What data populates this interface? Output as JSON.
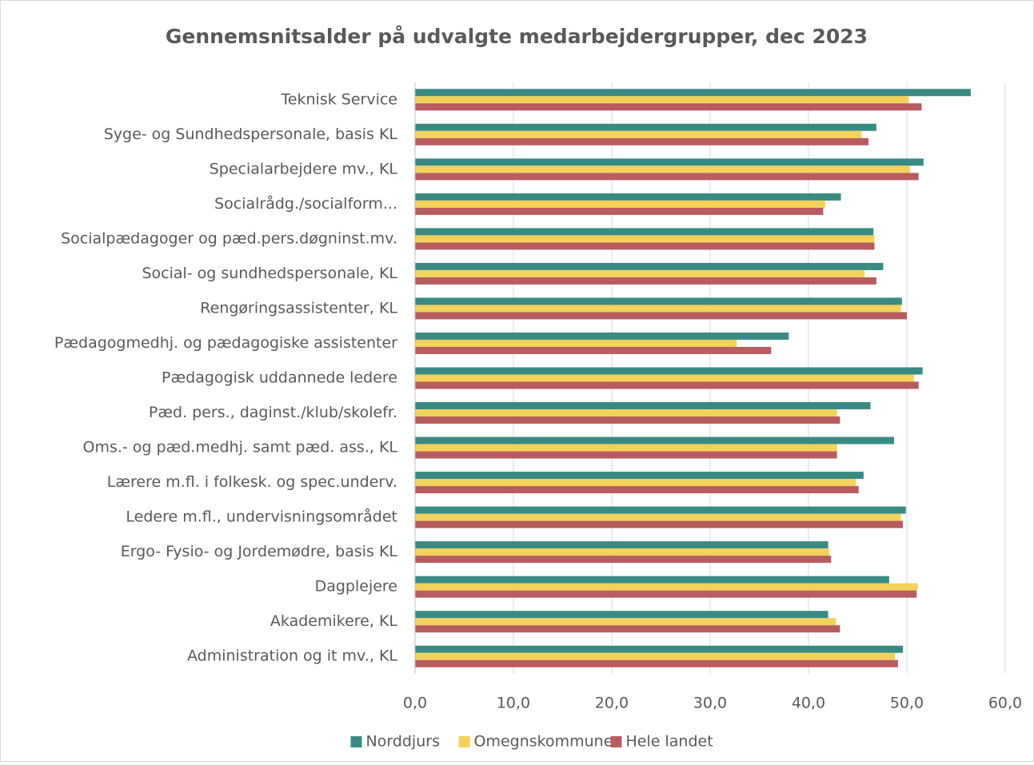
{
  "chart_data": {
    "type": "barh",
    "title": "Gennemsnitsalder på udvalgte medarbejdergrupper, dec 2023",
    "categories": [
      "Teknisk Service",
      "Syge- og Sundhedspersonale, basis KL",
      "Specialarbejdere mv., KL",
      "Socialrådg./socialform...",
      "Socialpædagoger og pæd.pers.døgninst.mv.",
      "Social- og sundhedspersonale, KL",
      "Rengøringsassistenter, KL",
      "Pædagogmedhj. og pædagogiske assistenter",
      "Pædagogisk uddannede ledere",
      "Pæd. pers., daginst./klub/skolefr.",
      "Oms.- og pæd.medhj. samt pæd. ass., KL",
      "Lærere m.fl. i folkesk. og spec.underv.",
      "Ledere m.fl., undervisningsområdet",
      "Ergo- Fysio- og Jordemødre, basis KL",
      "Dagplejere",
      "Akademikere, KL",
      "Administration og it mv., KL"
    ],
    "series": [
      {
        "name": "Norddjurs",
        "color": "#3a8a84",
        "values": [
          56.5,
          46.9,
          51.7,
          43.3,
          46.6,
          47.6,
          49.5,
          38.0,
          51.6,
          46.3,
          48.7,
          45.6,
          49.9,
          42.0,
          48.2,
          42.0,
          49.6
        ]
      },
      {
        "name": "Omegnskommuner",
        "color": "#f2d25a",
        "values": [
          50.2,
          45.4,
          50.3,
          41.7,
          46.7,
          45.7,
          49.4,
          32.7,
          50.7,
          42.9,
          42.9,
          44.8,
          49.4,
          42.1,
          51.1,
          42.8,
          48.8
        ]
      },
      {
        "name": "Hele landet",
        "color": "#b85c5f",
        "values": [
          51.5,
          46.1,
          51.2,
          41.5,
          46.7,
          46.9,
          50.0,
          36.2,
          51.2,
          43.2,
          42.9,
          45.1,
          49.6,
          42.3,
          51.0,
          43.2,
          49.1
        ]
      }
    ],
    "xlim": [
      0,
      60
    ],
    "xticks": [
      {
        "value": 0,
        "label": "0,0"
      },
      {
        "value": 10,
        "label": "10,0"
      },
      {
        "value": 20,
        "label": "20,0"
      },
      {
        "value": 30,
        "label": "30,0"
      },
      {
        "value": 40,
        "label": "40,0"
      },
      {
        "value": 50,
        "label": "50,0"
      },
      {
        "value": 60,
        "label": "60,0"
      }
    ],
    "grid": true,
    "legend": "bottom"
  }
}
